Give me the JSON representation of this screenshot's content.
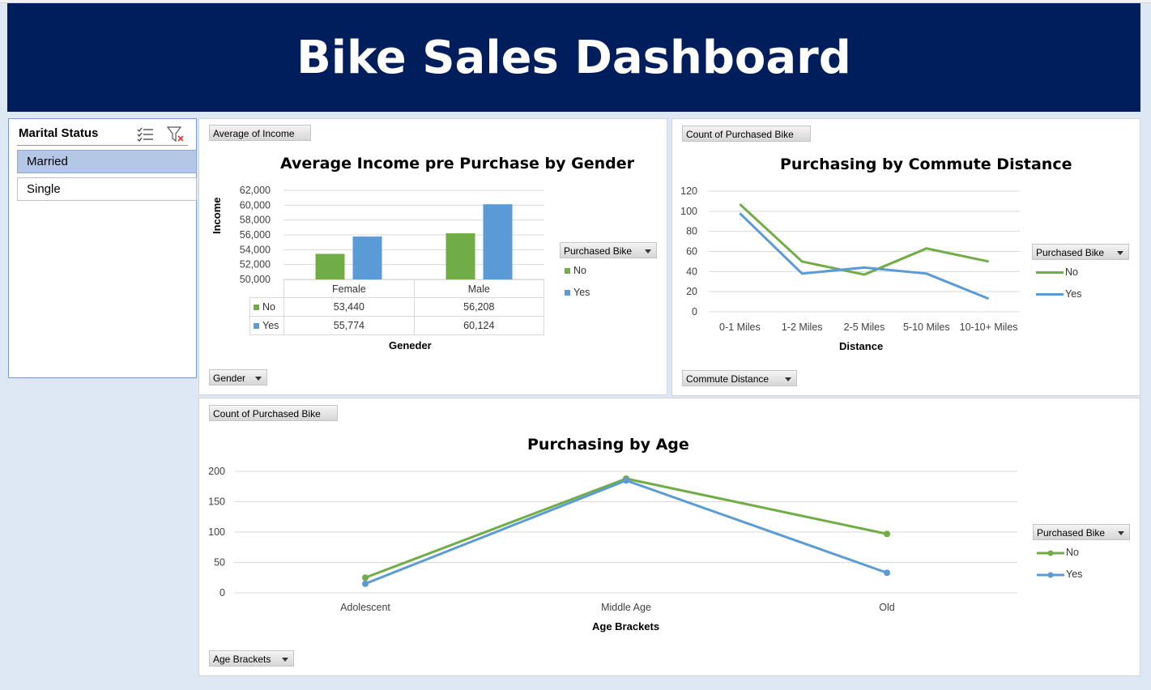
{
  "header": {
    "title": "Bike Sales Dashboard"
  },
  "slicer": {
    "title": "Marital Status",
    "icons": [
      "multi-select-icon",
      "clear-filter-icon"
    ],
    "items": [
      {
        "label": "Married",
        "selected": true
      },
      {
        "label": "Single",
        "selected": false
      }
    ]
  },
  "charts": {
    "income": {
      "value_button": "Average of Income",
      "axis_button": "Gender",
      "legend_button": "Purchased Bike",
      "xlabel": "Geneder",
      "ylabel": "Income",
      "yticks": [
        "62,000",
        "60,000",
        "58,000",
        "56,000",
        "54,000",
        "52,000",
        "50,000"
      ],
      "table": {
        "rows": [
          {
            "name": "No",
            "values": [
              "53,440",
              "56,208"
            ]
          },
          {
            "name": "Yes",
            "values": [
              "55,774",
              "60,124"
            ]
          }
        ]
      }
    },
    "commute": {
      "value_button": "Count of Purchased Bike",
      "axis_button": "Commute Distance",
      "legend_button": "Purchased Bike",
      "xlabel": "Distance",
      "yticks": [
        "120",
        "100",
        "80",
        "60",
        "40",
        "20",
        "0"
      ]
    },
    "age": {
      "value_button": "Count of Purchased Bike",
      "axis_button": "Age Brackets",
      "legend_button": "Purchased Bike",
      "xlabel": "Age Brackets",
      "yticks": [
        "200",
        "150",
        "100",
        "50",
        "0"
      ]
    }
  },
  "colors": {
    "no": "#70ad47",
    "yes": "#5b9bd5",
    "header": "#001e5c"
  },
  "chart_data": [
    {
      "type": "bar",
      "title": "Average Income pre Purchase by Gender",
      "categories": [
        "Female",
        "Male"
      ],
      "series": [
        {
          "name": "No",
          "values": [
            53440,
            56208
          ]
        },
        {
          "name": "Yes",
          "values": [
            55774,
            60124
          ]
        }
      ],
      "xlabel": "Geneder",
      "ylabel": "Income",
      "ylim": [
        50000,
        62000
      ],
      "grid": true,
      "legend": "right",
      "legend_title": "Purchased Bike"
    },
    {
      "type": "line",
      "title": "Purchasing by Commute Distance",
      "categories": [
        "0-1 Miles",
        "1-2 Miles",
        "2-5 Miles",
        "5-10 Miles",
        "10-10+ Miles"
      ],
      "series": [
        {
          "name": "No",
          "values": [
            107,
            50,
            37,
            63,
            50
          ]
        },
        {
          "name": "Yes",
          "values": [
            98,
            38,
            44,
            38,
            13
          ]
        }
      ],
      "xlabel": "Distance",
      "ylabel": "",
      "ylim": [
        0,
        120
      ],
      "grid": true,
      "legend": "right",
      "legend_title": "Purchased Bike"
    },
    {
      "type": "line",
      "title": "Purchasing by Age",
      "categories": [
        "Adolescent",
        "Middle Age",
        "Old"
      ],
      "series": [
        {
          "name": "No",
          "values": [
            25,
            188,
            97
          ]
        },
        {
          "name": "Yes",
          "values": [
            15,
            185,
            33
          ]
        }
      ],
      "xlabel": "Age Brackets",
      "ylabel": "",
      "ylim": [
        0,
        200
      ],
      "grid": true,
      "legend": "right",
      "markers": true,
      "legend_title": "Purchased Bike"
    }
  ]
}
